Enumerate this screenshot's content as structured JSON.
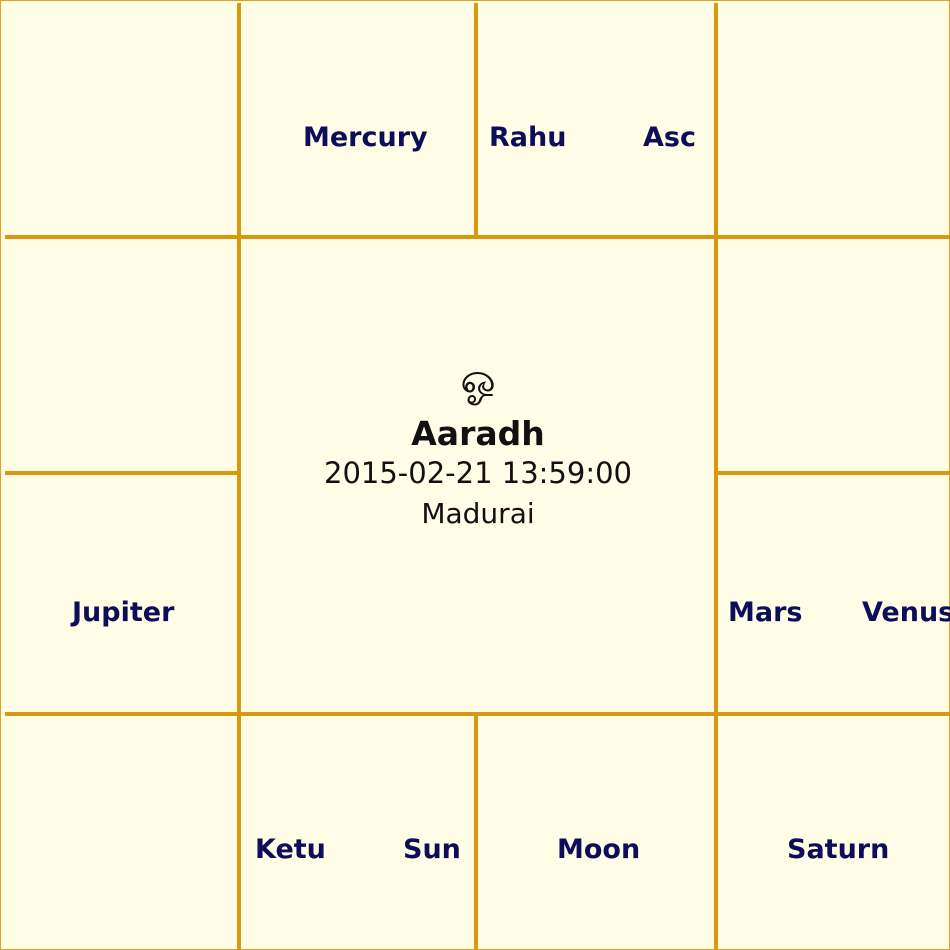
{
  "chart": {
    "houses": {
      "top_2": [
        "Mercury"
      ],
      "top_3": [
        "Rahu",
        "Asc"
      ],
      "left_bottom": [
        "Jupiter"
      ],
      "right_bottom": [
        "Mars",
        "Venus"
      ],
      "bottom_2": [
        "Ketu",
        "Sun"
      ],
      "bottom_3": [
        "Moon"
      ],
      "bottom_corner_right": [
        "Saturn"
      ]
    },
    "center": {
      "symbol": "ஓ",
      "name": "Aaradh",
      "datetime": "2015-02-21 13:59:00",
      "place": "Madurai"
    }
  },
  "colors": {
    "background": "#fffde6",
    "grid_lines": "#d9980f",
    "planet_text": "#0d0d59",
    "center_text": "#111111"
  }
}
